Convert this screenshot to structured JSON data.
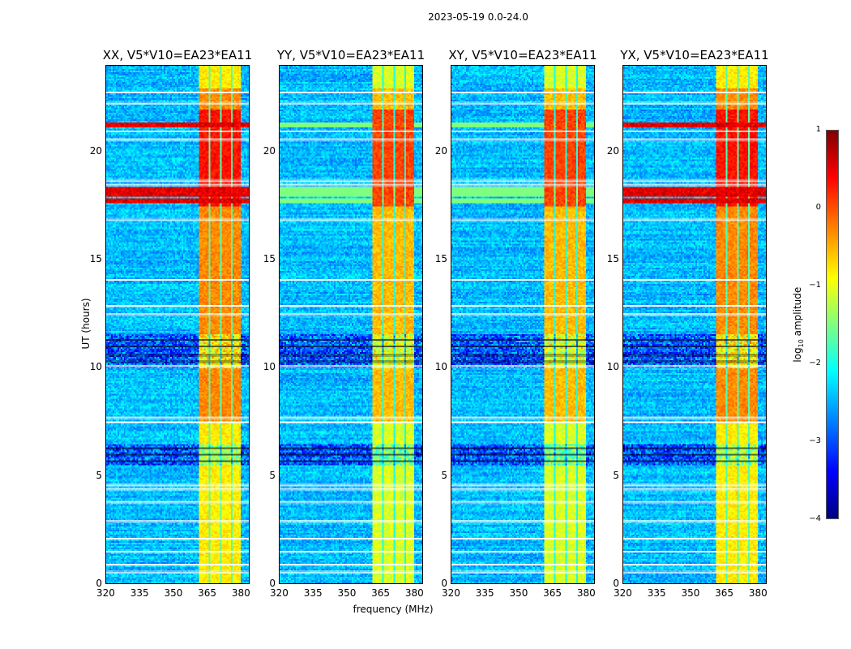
{
  "chart_data": {
    "type": "heatmap",
    "title": "2023-05-19 0.0-24.0",
    "xlabel": "frequency (MHz)",
    "ylabel": "UT (hours)",
    "xlim": [
      320,
      384
    ],
    "ylim": [
      0,
      24
    ],
    "xticks": [
      320,
      335,
      350,
      365,
      380
    ],
    "yticks": [
      0,
      5,
      10,
      15,
      20
    ],
    "panels": [
      {
        "name": "XX",
        "title": "XX, V5*V10=EA23*EA11"
      },
      {
        "name": "YY",
        "title": "YY, V5*V10=EA23*EA11"
      },
      {
        "name": "XY",
        "title": "XY, V5*V10=EA23*EA11"
      },
      {
        "name": "YX",
        "title": "YX, V5*V10=EA23*EA11"
      }
    ],
    "colorbar": {
      "label": "log10 amplitude",
      "label_main": "log",
      "label_sub": "10",
      "label_tail": " amplitude",
      "colormap": "jet",
      "range": [
        -4,
        1
      ],
      "ticks": [
        "1",
        "0",
        "−1",
        "−2",
        "−3",
        "−4"
      ]
    },
    "bright_band_mhz": [
      361,
      380
    ],
    "flagged_hours": [
      0.55,
      0.9,
      1.5,
      2.1,
      2.9,
      3.8,
      4.4,
      4.6,
      7.5,
      7.7,
      10.1,
      12.5,
      12.9,
      14.1,
      16.9,
      18.5,
      18.7,
      20.6,
      21.0,
      22.3,
      22.8
    ],
    "rfi_hours": [
      17.8,
      18.1,
      18.3,
      21.3
    ]
  }
}
